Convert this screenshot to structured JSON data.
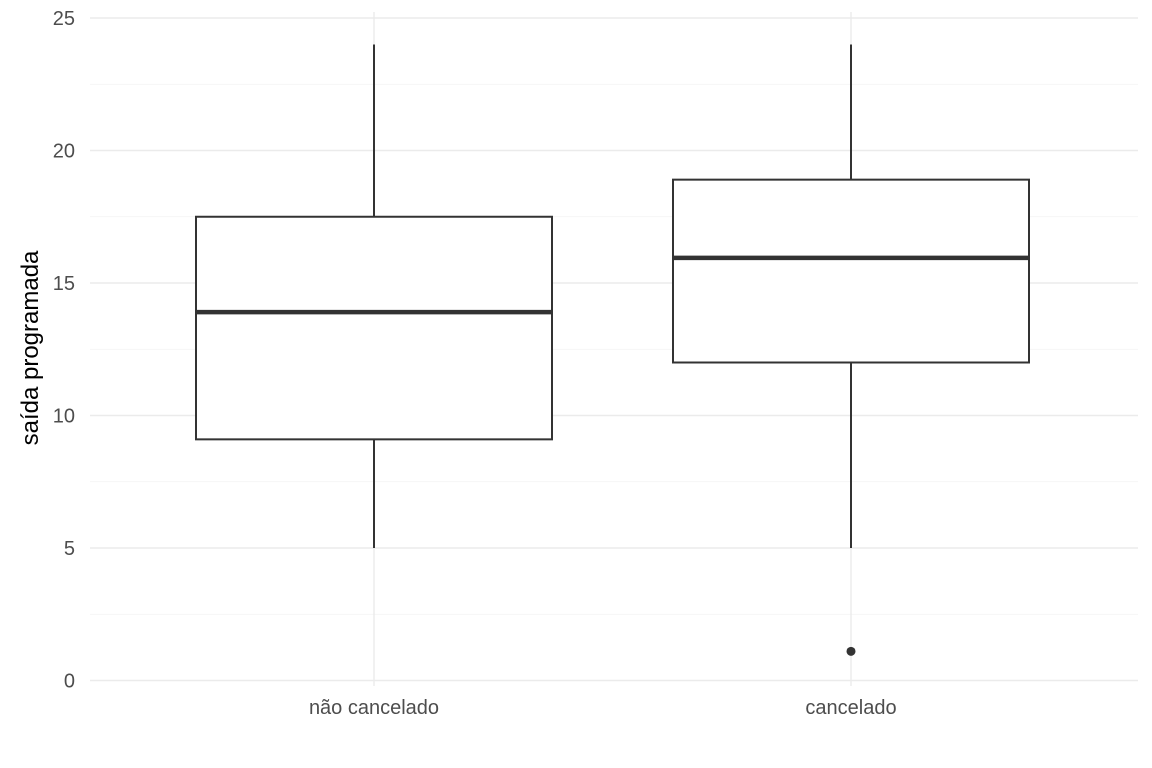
{
  "chart_data": {
    "type": "boxplot",
    "title": "",
    "xlabel": "",
    "ylabel": "saída programada",
    "ylim": [
      0,
      25
    ],
    "yticks": [
      0,
      5,
      10,
      15,
      20,
      25
    ],
    "grid": true,
    "categories": [
      "não cancelado",
      "cancelado"
    ],
    "boxes": [
      {
        "category": "não cancelado",
        "whisker_low": 5,
        "q1": 9.1,
        "median": 13.9,
        "q3": 17.5,
        "whisker_high": 24,
        "outliers": []
      },
      {
        "category": "cancelado",
        "whisker_low": 5,
        "q1": 12.0,
        "median": 15.95,
        "q3": 18.9,
        "whisker_high": 24,
        "outliers": [
          1.1
        ]
      }
    ],
    "colors": {
      "box_stroke": "#333333",
      "box_fill": "#ffffff",
      "grid": "#ebebeb"
    }
  }
}
